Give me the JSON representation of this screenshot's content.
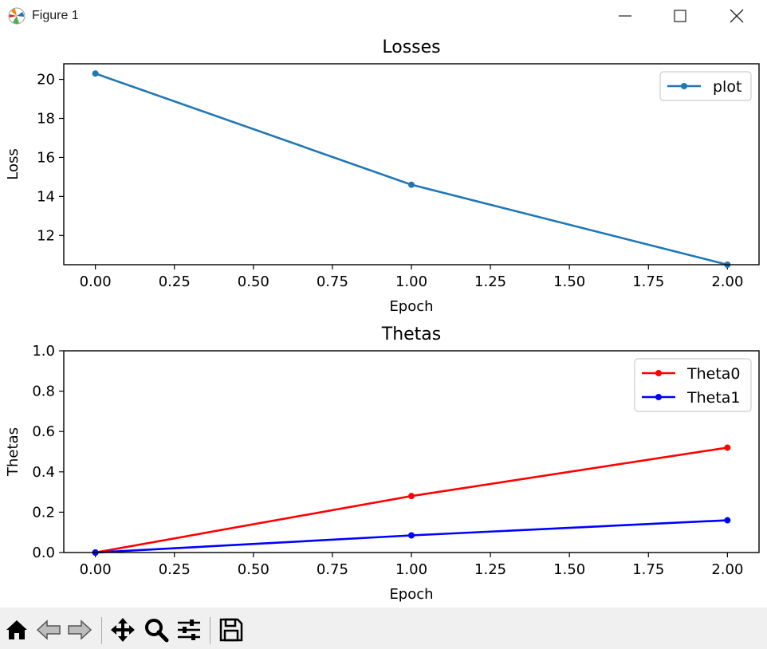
{
  "window": {
    "title": "Figure 1"
  },
  "toolbar": {
    "buttons": [
      {
        "name": "home-icon"
      },
      {
        "name": "back-arrow-icon"
      },
      {
        "name": "forward-arrow-icon"
      },
      {
        "name": "pan-icon"
      },
      {
        "name": "zoom-icon"
      },
      {
        "name": "configure-subplots-icon"
      },
      {
        "name": "save-icon"
      }
    ]
  },
  "chart_data": [
    {
      "type": "line",
      "title": "Losses",
      "xlabel": "Epoch",
      "ylabel": "Loss",
      "xlim": [
        -0.1,
        2.1
      ],
      "ylim": [
        10.5,
        20.8
      ],
      "xticks": [
        "0.00",
        "0.25",
        "0.50",
        "0.75",
        "1.00",
        "1.25",
        "1.50",
        "1.75",
        "2.00"
      ],
      "yticks": [
        "12",
        "14",
        "16",
        "18",
        "20"
      ],
      "legend_position": "upper right",
      "x": [
        0,
        1,
        2
      ],
      "series": [
        {
          "name": "plot",
          "color": "#1f77b4",
          "values": [
            20.3,
            14.6,
            10.5
          ]
        }
      ]
    },
    {
      "type": "line",
      "title": "Thetas",
      "xlabel": "Epoch",
      "ylabel": "Thetas",
      "xlim": [
        -0.1,
        2.1
      ],
      "ylim": [
        0,
        1
      ],
      "xticks": [
        "0.00",
        "0.25",
        "0.50",
        "0.75",
        "1.00",
        "1.25",
        "1.50",
        "1.75",
        "2.00"
      ],
      "yticks": [
        "0.0",
        "0.2",
        "0.4",
        "0.6",
        "0.8",
        "1.0"
      ],
      "legend_position": "upper right",
      "x": [
        0,
        1,
        2
      ],
      "series": [
        {
          "name": "Theta0",
          "color": "#ff0000",
          "values": [
            0.0,
            0.28,
            0.52
          ]
        },
        {
          "name": "Theta1",
          "color": "#0000ff",
          "values": [
            0.0,
            0.085,
            0.16
          ]
        }
      ]
    }
  ]
}
